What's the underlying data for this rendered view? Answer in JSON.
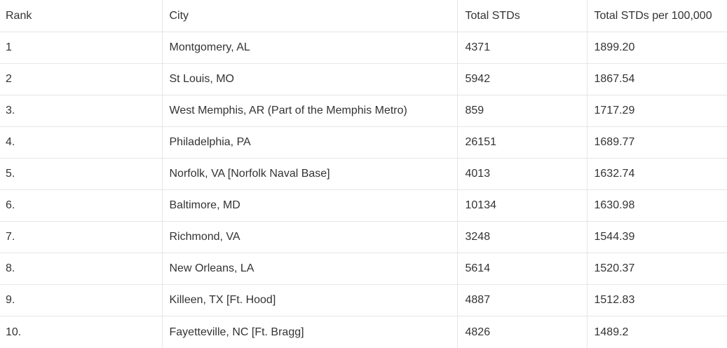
{
  "table": {
    "headers": [
      "Rank",
      "City",
      "Total STDs",
      "Total STDs per 100,000"
    ],
    "rows": [
      {
        "rank": "1",
        "city": "Montgomery, AL",
        "total": "4371",
        "per100k": "1899.20"
      },
      {
        "rank": "2",
        "city": "St Louis, MO",
        "total": "5942",
        "per100k": "1867.54"
      },
      {
        "rank": "3.",
        "city": "West Memphis, AR (Part of the Memphis Metro)",
        "total": "859",
        "per100k": "1717.29"
      },
      {
        "rank": "4.",
        "city": "Philadelphia, PA",
        "total": "26151",
        "per100k": "1689.77"
      },
      {
        "rank": "5.",
        "city": "Norfolk, VA [Norfolk Naval Base]",
        "total": "4013",
        "per100k": "1632.74"
      },
      {
        "rank": "6.",
        "city": "Baltimore, MD",
        "total": "10134",
        "per100k": "1630.98"
      },
      {
        "rank": "7.",
        "city": "Richmond, VA",
        "total": "3248",
        "per100k": "1544.39"
      },
      {
        "rank": "8.",
        "city": "New Orleans, LA",
        "total": "5614",
        "per100k": "1520.37"
      },
      {
        "rank": "9.",
        "city": "Killeen, TX [Ft. Hood]",
        "total": "4887",
        "per100k": "1512.83"
      },
      {
        "rank": "10.",
        "city": "Fayetteville, NC [Ft. Bragg]",
        "total": "4826",
        "per100k": "1489.2"
      }
    ]
  }
}
